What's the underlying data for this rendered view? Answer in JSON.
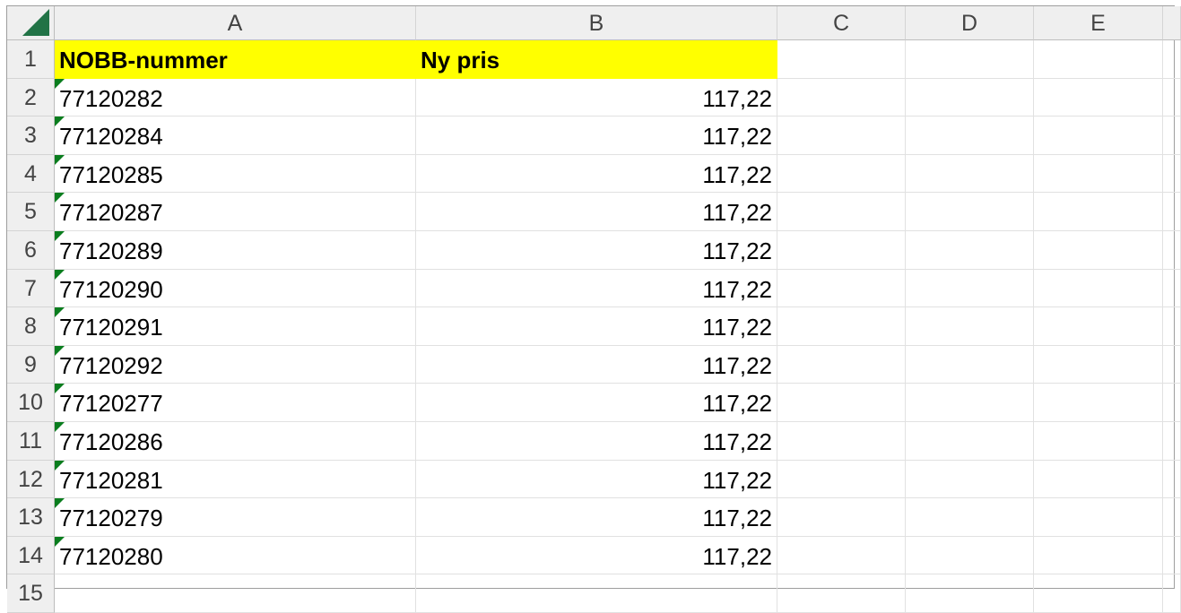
{
  "sheet": {
    "select_all_icon": "select-all-triangle",
    "columns": [
      "A",
      "B",
      "C",
      "D",
      "E"
    ],
    "rows": [
      1,
      2,
      3,
      4,
      5,
      6,
      7,
      8,
      9,
      10,
      11,
      12,
      13,
      14,
      15
    ],
    "header": {
      "a": "NOBB-nummer",
      "b": "Ny pris",
      "fill_color": "#ffff00"
    },
    "data": [
      {
        "a": "77120282",
        "b": "117,22"
      },
      {
        "a": "77120284",
        "b": "117,22"
      },
      {
        "a": "77120285",
        "b": "117,22"
      },
      {
        "a": "77120287",
        "b": "117,22"
      },
      {
        "a": "77120289",
        "b": "117,22"
      },
      {
        "a": "77120290",
        "b": "117,22"
      },
      {
        "a": "77120291",
        "b": "117,22"
      },
      {
        "a": "77120292",
        "b": "117,22"
      },
      {
        "a": "77120277",
        "b": "117,22"
      },
      {
        "a": "77120286",
        "b": "117,22"
      },
      {
        "a": "77120281",
        "b": "117,22"
      },
      {
        "a": "77120279",
        "b": "117,22"
      },
      {
        "a": "77120280",
        "b": "117,22"
      }
    ],
    "error_indicator_color": "#0a7d1e"
  }
}
